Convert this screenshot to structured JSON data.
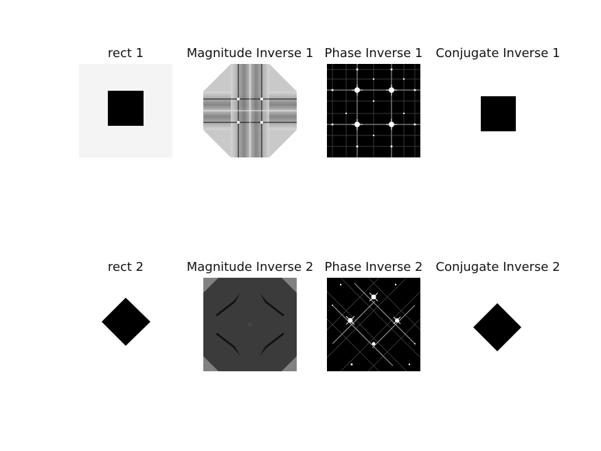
{
  "figure": {
    "rows": [
      {
        "panels": [
          {
            "title": "rect 1",
            "content": "light-square-with-black-square"
          },
          {
            "title": "Magnitude Inverse 1",
            "content": "gray-cross-pattern"
          },
          {
            "title": "Phase Inverse 1",
            "content": "black-grid-with-bright-spots"
          },
          {
            "title": "Conjugate Inverse 1",
            "content": "black-square"
          }
        ]
      },
      {
        "panels": [
          {
            "title": "rect 2",
            "content": "black-diamond"
          },
          {
            "title": "Magnitude Inverse 2",
            "content": "dark-gray-with-diagonal-streaks"
          },
          {
            "title": "Phase Inverse 2",
            "content": "black-with-diagonal-bright-lattice"
          },
          {
            "title": "Conjugate Inverse 2",
            "content": "black-diamond"
          }
        ]
      }
    ]
  }
}
